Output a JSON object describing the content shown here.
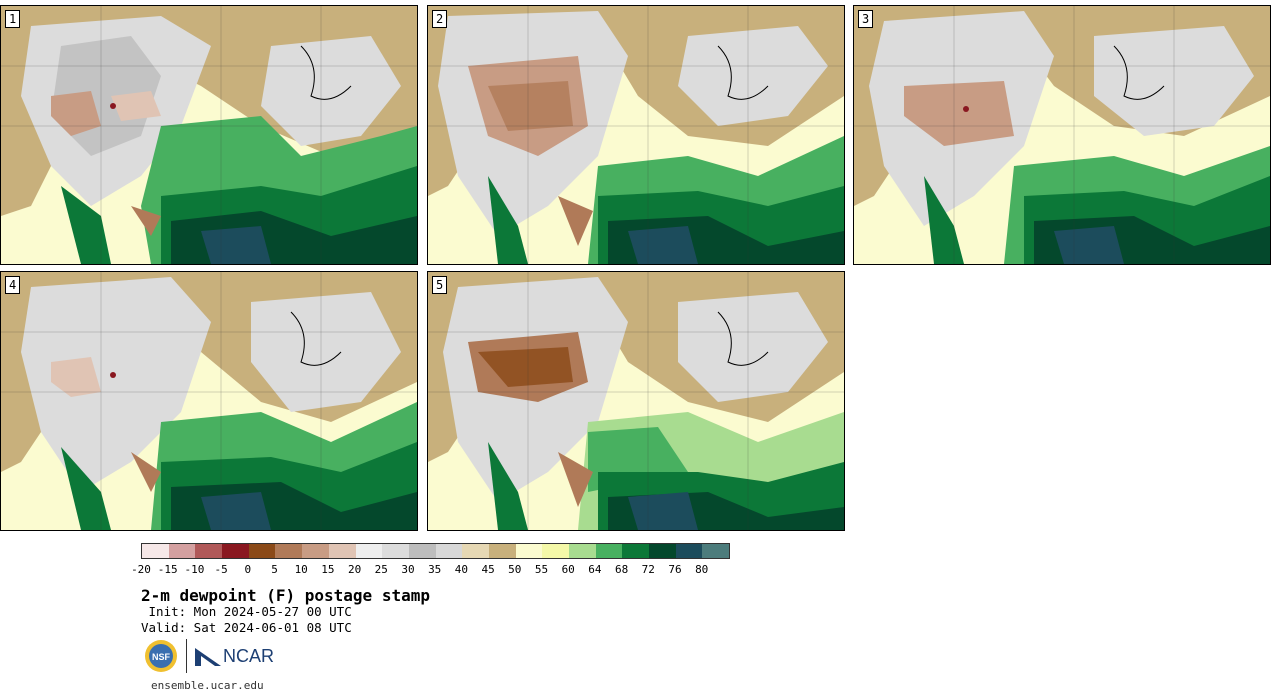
{
  "panels": [
    {
      "label": "1"
    },
    {
      "label": "2"
    },
    {
      "label": "3"
    },
    {
      "label": "4"
    },
    {
      "label": "5"
    }
  ],
  "colorbar": {
    "colors": [
      "#f6e8e8",
      "#d4a0a0",
      "#b05858",
      "#8a1820",
      "#8b4a18",
      "#b07a58",
      "#c89c84",
      "#e0c4b4",
      "#eeeeee",
      "#dcdcdc",
      "#bdbdbd",
      "#d8d8d8",
      "#e6d8b4",
      "#c8b07c",
      "#fbfbd0",
      "#f4f8a8",
      "#a8dc90",
      "#48b060",
      "#0c7838",
      "#04482c",
      "#1c4c5c",
      "#4c7c7c"
    ],
    "tick_labels": [
      "-20",
      "-15",
      "-10",
      "-5",
      "0",
      "5",
      "10",
      "15",
      "20",
      "25",
      "30",
      "35",
      "40",
      "45",
      "50",
      "55",
      "60",
      "64",
      "68",
      "72",
      "76",
      "80"
    ]
  },
  "title": "2-m dewpoint (F) postage stamp",
  "init": " Init: Mon 2024-05-27 00 UTC",
  "valid": "Valid: Sat 2024-06-01 08 UTC",
  "logo_text": "NCAR",
  "nsf_text": "NSF",
  "site": "ensemble.ucar.edu"
}
